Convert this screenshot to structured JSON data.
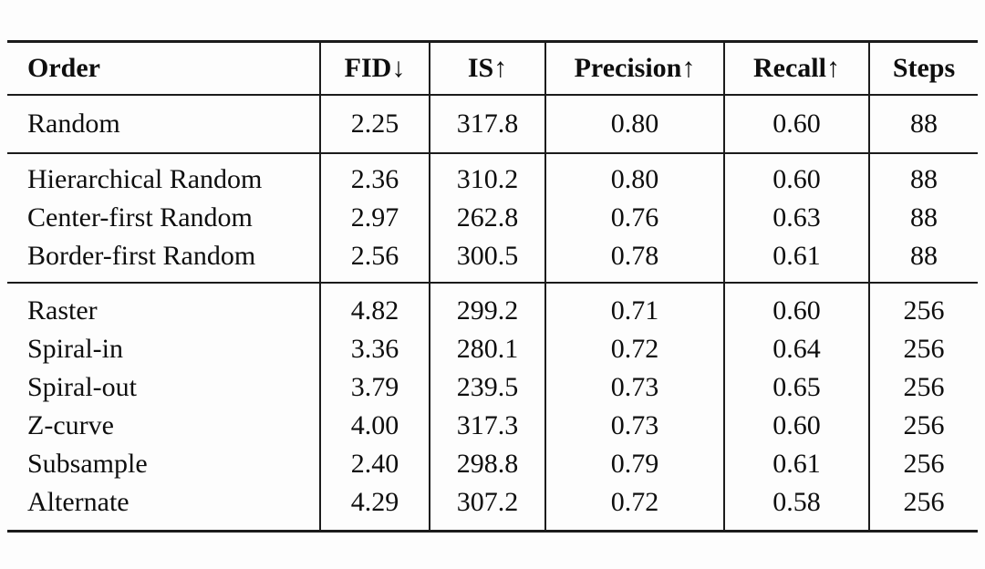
{
  "colors": {
    "background": "#fdfdfd",
    "text": "#0e0e0e",
    "rule": "#1b1b1b"
  },
  "table": {
    "columns": [
      {
        "key": "order",
        "label": "Order"
      },
      {
        "key": "fid",
        "label": "FID↓"
      },
      {
        "key": "is",
        "label": "IS↑"
      },
      {
        "key": "precision",
        "label": "Precision↑"
      },
      {
        "key": "recall",
        "label": "Recall↑"
      },
      {
        "key": "steps",
        "label": "Steps"
      }
    ],
    "sections": [
      {
        "rows": [
          {
            "order": "Random",
            "fid": "2.25",
            "is": "317.8",
            "precision": "0.80",
            "recall": "0.60",
            "steps": "88"
          }
        ]
      },
      {
        "rows": [
          {
            "order": "Hierarchical Random",
            "fid": "2.36",
            "is": "310.2",
            "precision": "0.80",
            "recall": "0.60",
            "steps": "88"
          },
          {
            "order": "Center-first Random",
            "fid": "2.97",
            "is": "262.8",
            "precision": "0.76",
            "recall": "0.63",
            "steps": "88"
          },
          {
            "order": "Border-first Random",
            "fid": "2.56",
            "is": "300.5",
            "precision": "0.78",
            "recall": "0.61",
            "steps": "88"
          }
        ]
      },
      {
        "rows": [
          {
            "order": "Raster",
            "fid": "4.82",
            "is": "299.2",
            "precision": "0.71",
            "recall": "0.60",
            "steps": "256"
          },
          {
            "order": "Spiral-in",
            "fid": "3.36",
            "is": "280.1",
            "precision": "0.72",
            "recall": "0.64",
            "steps": "256"
          },
          {
            "order": "Spiral-out",
            "fid": "3.79",
            "is": "239.5",
            "precision": "0.73",
            "recall": "0.65",
            "steps": "256"
          },
          {
            "order": "Z-curve",
            "fid": "4.00",
            "is": "317.3",
            "precision": "0.73",
            "recall": "0.60",
            "steps": "256"
          },
          {
            "order": "Subsample",
            "fid": "2.40",
            "is": "298.8",
            "precision": "0.79",
            "recall": "0.61",
            "steps": "256"
          },
          {
            "order": "Alternate",
            "fid": "4.29",
            "is": "307.2",
            "precision": "0.72",
            "recall": "0.58",
            "steps": "256"
          }
        ]
      }
    ]
  }
}
